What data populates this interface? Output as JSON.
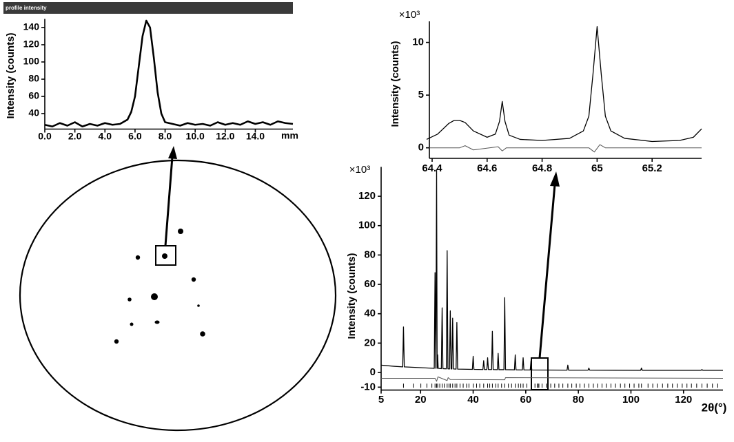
{
  "chart_data": [
    {
      "type": "line",
      "title": "profile intensity",
      "y_label": "Intensity (counts)",
      "x_unit": "mm",
      "xlim": [
        0,
        16.5
      ],
      "ylim": [
        22,
        150
      ],
      "xticks": [
        {
          "value": 0,
          "label": "0.0"
        },
        {
          "value": 2,
          "label": "2.0"
        },
        {
          "value": 4,
          "label": "4.0"
        },
        {
          "value": 6,
          "label": "6.0"
        },
        {
          "value": 8,
          "label": "8.0"
        },
        {
          "value": 10,
          "label": "10.0"
        },
        {
          "value": 12,
          "label": "12.0"
        },
        {
          "value": 14,
          "label": "14.0"
        }
      ],
      "yticks": [
        40,
        60,
        80,
        100,
        120,
        140
      ],
      "series": [
        {
          "color": "#000000",
          "x": [
            0,
            0.5,
            1,
            1.5,
            2,
            2.5,
            3,
            3.5,
            4,
            4.5,
            5,
            5.5,
            5.75,
            6,
            6.25,
            6.5,
            6.75,
            7,
            7.25,
            7.5,
            7.75,
            8,
            8.5,
            9,
            9.5,
            10,
            10.5,
            11,
            11.5,
            12,
            12.5,
            13,
            13.5,
            14,
            14.5,
            15,
            15.5,
            16,
            16.5
          ],
          "values": [
            27,
            25,
            29,
            26,
            30,
            25,
            28,
            26,
            29,
            27,
            28,
            33,
            42,
            60,
            95,
            130,
            148,
            140,
            105,
            65,
            40,
            30,
            28,
            26,
            29,
            27,
            28,
            26,
            30,
            27,
            29,
            27,
            31,
            28,
            30,
            27,
            31,
            29,
            28
          ]
        }
      ]
    },
    {
      "type": "line",
      "y_label": "Intensity (counts)",
      "y_multiplier": "×10³",
      "xlim": [
        64.39,
        65.38
      ],
      "ylim": [
        -1,
        12
      ],
      "xticks": [
        64.4,
        64.6,
        64.8,
        65,
        65.2
      ],
      "yticks": [
        0,
        5,
        10
      ],
      "series": [
        {
          "color": "#000000",
          "x": [
            64.38,
            64.42,
            64.46,
            64.48,
            64.5,
            64.52,
            64.55,
            64.6,
            64.63,
            64.645,
            64.655,
            64.665,
            64.68,
            64.72,
            64.8,
            64.9,
            64.95,
            64.97,
            64.985,
            65,
            65.015,
            65.03,
            65.05,
            65.1,
            65.2,
            65.3,
            65.35,
            65.38
          ],
          "values": [
            0.8,
            1.3,
            2.3,
            2.6,
            2.6,
            2.4,
            1.6,
            1.0,
            1.3,
            2.5,
            4.4,
            2.5,
            1.2,
            0.8,
            0.7,
            0.9,
            1.6,
            3,
            7,
            11.5,
            7,
            3,
            1.6,
            0.9,
            0.6,
            0.7,
            1.0,
            1.8
          ]
        },
        {
          "color": "#555555",
          "x": [
            64.39,
            64.5,
            64.52,
            64.55,
            64.64,
            64.655,
            64.67,
            64.97,
            64.99,
            65.01,
            65.03,
            65.38
          ],
          "values": [
            0,
            0,
            0.2,
            -0.2,
            0.1,
            -0.3,
            0,
            0,
            -0.4,
            0.3,
            0,
            0
          ]
        }
      ]
    },
    {
      "type": "line",
      "y_label": "Intensity (counts)",
      "y_multiplier": "×10³",
      "x_label": "2θ(°)",
      "xlim": [
        5,
        135
      ],
      "ylim": [
        -12,
        140
      ],
      "xticks": [
        5,
        20,
        40,
        60,
        80,
        100,
        120
      ],
      "yticks": [
        -10,
        0,
        20,
        40,
        60,
        80,
        100,
        120
      ],
      "series": [
        {
          "color": "#000000",
          "x": [
            5,
            10,
            13.2,
            13.5,
            13.8,
            25.2,
            25.5,
            25.8,
            26.1,
            26.3,
            26.5,
            26.7,
            27.9,
            28.2,
            28.5,
            29.8,
            30.1,
            30.4,
            31,
            31.3,
            31.6,
            31.9,
            32.2,
            32.5,
            33.5,
            33.8,
            34.1,
            39.7,
            40,
            40.3,
            43.7,
            44,
            44.3,
            45.2,
            45.5,
            45.8,
            47,
            47.3,
            47.6,
            49.2,
            49.5,
            49.8,
            51.7,
            52,
            52.3,
            55.7,
            56,
            56.3,
            58.7,
            59,
            59.3,
            61.7,
            62,
            62.3,
            75.7,
            76,
            76.3,
            83.7,
            84,
            84.3,
            103.7,
            104,
            104.3,
            126.7,
            127,
            127.3,
            135
          ],
          "values": [
            5,
            4.2,
            3.8,
            31,
            3.8,
            2.8,
            68,
            2.8,
            138,
            2.8,
            12,
            2.8,
            2.6,
            44,
            2.6,
            2.5,
            83,
            2.5,
            2.4,
            42,
            2.4,
            2.4,
            37,
            2.4,
            2.3,
            34,
            2.3,
            2.1,
            11,
            2.1,
            2,
            8,
            2,
            2,
            10,
            2,
            2,
            28,
            2,
            1.9,
            13,
            1.9,
            1.9,
            51,
            1.9,
            1.8,
            12,
            1.8,
            1.7,
            10,
            1.7,
            1.7,
            8,
            1.7,
            1.6,
            5,
            1.6,
            1.6,
            3,
            1.6,
            1.5,
            3,
            1.5,
            1.5,
            2,
            1.5,
            1.5
          ]
        },
        {
          "color": "#555555",
          "x": [
            5,
            25.5,
            26.1,
            26.6,
            30.1,
            30.5,
            31.3,
            52,
            52.3,
            135
          ],
          "values": [
            -4,
            -4,
            -6,
            -3,
            -5.5,
            -3.5,
            -4.8,
            -5,
            -3.5,
            -4
          ]
        }
      ],
      "reflections": {
        "y": -9,
        "x": [
          13.5,
          17.2,
          20.1,
          22.4,
          24.3,
          25.5,
          26.1,
          26.5,
          27.3,
          28.2,
          29,
          30.1,
          30.8,
          31.3,
          32.2,
          33.1,
          33.8,
          35,
          36.2,
          37.5,
          38.4,
          40,
          41.3,
          42.5,
          44,
          45.5,
          46.3,
          47.3,
          48.6,
          49.5,
          50.8,
          52,
          53.4,
          54.6,
          56,
          57.2,
          58.1,
          59,
          60.4,
          62,
          63.5,
          64.5,
          64.65,
          65,
          66.2,
          67.8,
          69.5,
          71,
          72.6,
          74.1,
          76,
          77.5,
          79.2,
          80.6,
          82.3,
          84,
          85.7,
          87.3,
          89,
          90.6,
          92.4,
          94.1,
          96,
          97.7,
          99.5,
          101.2,
          103,
          104,
          106.5,
          108.3,
          110,
          112,
          114,
          115.8,
          117.6,
          119.5,
          121.3,
          123,
          125,
          127,
          129,
          131,
          133
        ]
      }
    }
  ]
}
